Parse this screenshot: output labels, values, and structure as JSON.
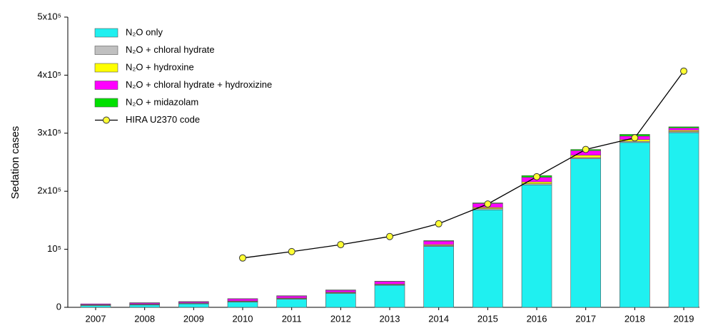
{
  "chart_data": {
    "type": "stacked_bar_line",
    "y_label": "Sedation cases",
    "categories": [
      "2007",
      "2008",
      "2009",
      "2010",
      "2011",
      "2012",
      "2013",
      "2014",
      "2015",
      "2016",
      "2017",
      "2018",
      "2019"
    ],
    "series": [
      {
        "name": "N₂O only",
        "color": "#1ff0f0",
        "values": [
          3000,
          4000,
          6000,
          9000,
          14000,
          24000,
          38000,
          105000,
          168000,
          211000,
          256000,
          284000,
          301000
        ]
      },
      {
        "name": "N₂O + chloral hydrate",
        "color": "#c0c0c0",
        "values": [
          1000,
          1000,
          1000,
          1000,
          1000,
          1000,
          1000,
          1500,
          2000,
          2000,
          2000,
          2000,
          2000
        ]
      },
      {
        "name": "N₂O + hydroxine",
        "color": "#ffff00",
        "values": [
          500,
          500,
          500,
          1000,
          1000,
          1000,
          1000,
          1500,
          2000,
          3000,
          4000,
          3000,
          2000
        ]
      },
      {
        "name": "N₂O + chloral hydrate + hydroxizine",
        "color": "#ff00ff",
        "values": [
          1500,
          2000,
          2000,
          3500,
          3500,
          3500,
          4500,
          6000,
          7000,
          8000,
          8000,
          6000,
          4000
        ]
      },
      {
        "name": "N₂O + midazolam",
        "color": "#00e000",
        "values": [
          0,
          500,
          500,
          500,
          500,
          500,
          500,
          1000,
          1000,
          3000,
          2000,
          3000,
          2000
        ]
      },
      {
        "name": "HIRA U2370 code",
        "color": "#000000",
        "marker_color": "#ffff33",
        "kind": "line",
        "values": [
          null,
          null,
          null,
          85000,
          96000,
          108000,
          122000,
          144000,
          178000,
          225000,
          272000,
          292000,
          407000
        ]
      }
    ],
    "ylim": [
      0,
      500000
    ],
    "yticks": [
      0,
      {
        "value": 100000,
        "label": "10⁵"
      },
      {
        "value": 200000,
        "label": "2x10⁵"
      },
      {
        "value": 300000,
        "label": "3x10⁵"
      },
      {
        "value": 400000,
        "label": "4x10⁵"
      },
      {
        "value": 500000,
        "label": "5x10⁵"
      }
    ]
  }
}
